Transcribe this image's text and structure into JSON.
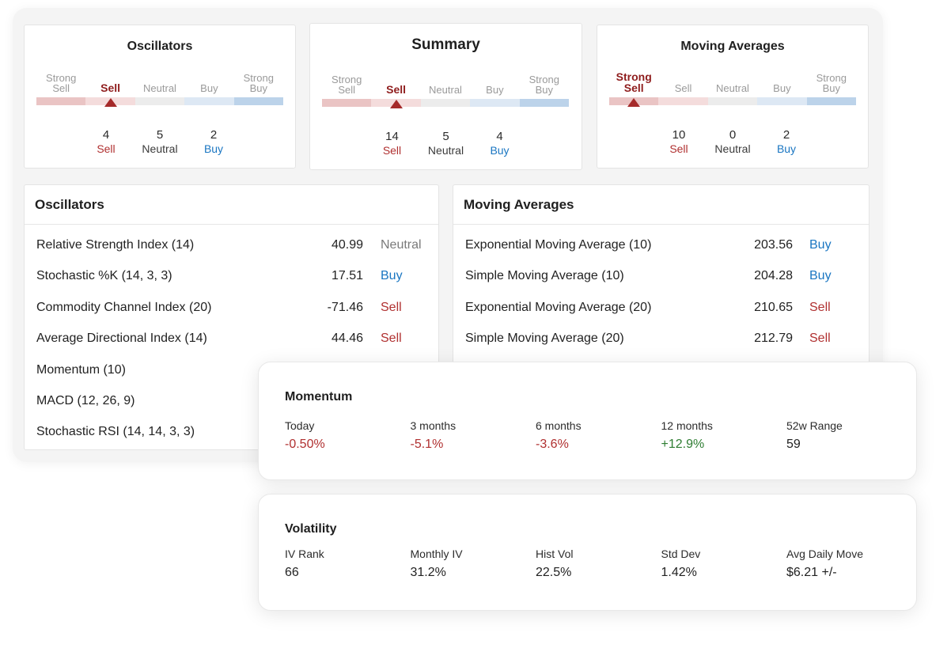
{
  "colors": {
    "sell": "#b03030",
    "strong_sell": "#8f1d1d",
    "buy": "#1a76c2",
    "neutral": "#3a3a3a",
    "positive": "#2e7d32",
    "bar_segments": [
      "#eac4c4",
      "#f4dcdc",
      "#ececec",
      "#dde8f4",
      "#bcd3ea"
    ]
  },
  "gauges": [
    {
      "title": "Oscillators",
      "scale": [
        "Strong\nSell",
        "Sell",
        "Neutral",
        "Buy",
        "Strong\nBuy"
      ],
      "active": "Sell",
      "counts": {
        "sell": "4",
        "neutral": "5",
        "buy": "2"
      },
      "count_labels": {
        "sell": "Sell",
        "neutral": "Neutral",
        "buy": "Buy"
      }
    },
    {
      "title": "Summary",
      "scale": [
        "Strong\nSell",
        "Sell",
        "Neutral",
        "Buy",
        "Strong\nBuy"
      ],
      "active": "Sell",
      "counts": {
        "sell": "14",
        "neutral": "5",
        "buy": "4"
      },
      "count_labels": {
        "sell": "Sell",
        "neutral": "Neutral",
        "buy": "Buy"
      }
    },
    {
      "title": "Moving Averages",
      "scale": [
        "Strong\nSell",
        "Sell",
        "Neutral",
        "Buy",
        "Strong\nBuy"
      ],
      "active": "Strong Sell",
      "counts": {
        "sell": "10",
        "neutral": "0",
        "buy": "2"
      },
      "count_labels": {
        "sell": "Sell",
        "neutral": "Neutral",
        "buy": "Buy"
      }
    }
  ],
  "oscillators_table": {
    "title": "Oscillators",
    "rows": [
      {
        "name": "Relative Strength Index (14)",
        "value": "40.99",
        "action": "Neutral"
      },
      {
        "name": "Stochastic %K (14, 3, 3)",
        "value": "17.51",
        "action": "Buy"
      },
      {
        "name": "Commodity Channel Index (20)",
        "value": "-71.46",
        "action": "Sell"
      },
      {
        "name": "Average Directional Index (14)",
        "value": "44.46",
        "action": "Sell"
      },
      {
        "name": "Momentum (10)",
        "value": "",
        "action": ""
      },
      {
        "name": "MACD (12, 26, 9)",
        "value": "",
        "action": ""
      },
      {
        "name": "Stochastic RSI (14, 14, 3, 3)",
        "value": "",
        "action": ""
      }
    ]
  },
  "moving_averages_table": {
    "title": "Moving Averages",
    "rows": [
      {
        "name": "Exponential Moving Average (10)",
        "value": "203.56",
        "action": "Buy"
      },
      {
        "name": "Simple Moving Average (10)",
        "value": "204.28",
        "action": "Buy"
      },
      {
        "name": "Exponential Moving Average (20)",
        "value": "210.65",
        "action": "Sell"
      },
      {
        "name": "Simple Moving Average (20)",
        "value": "212.79",
        "action": "Sell"
      }
    ]
  },
  "momentum": {
    "title": "Momentum",
    "stats": [
      {
        "label": "Today",
        "value": "-0.50%",
        "tone": "neg"
      },
      {
        "label": "3 months",
        "value": "-5.1%",
        "tone": "neg"
      },
      {
        "label": "6 months",
        "value": "-3.6%",
        "tone": "neg"
      },
      {
        "label": "12 months",
        "value": "+12.9%",
        "tone": "pos"
      },
      {
        "label": "52w Range",
        "value": "59",
        "tone": "plain"
      }
    ]
  },
  "volatility": {
    "title": "Volatility",
    "stats": [
      {
        "label": "IV Rank",
        "value": "66",
        "tone": "plain"
      },
      {
        "label": "Monthly IV",
        "value": "31.2%",
        "tone": "plain"
      },
      {
        "label": "Hist Vol",
        "value": "22.5%",
        "tone": "plain"
      },
      {
        "label": "Std Dev",
        "value": "1.42%",
        "tone": "plain"
      },
      {
        "label": "Avg Daily Move",
        "value": "$6.21 +/-",
        "tone": "plain"
      }
    ]
  }
}
